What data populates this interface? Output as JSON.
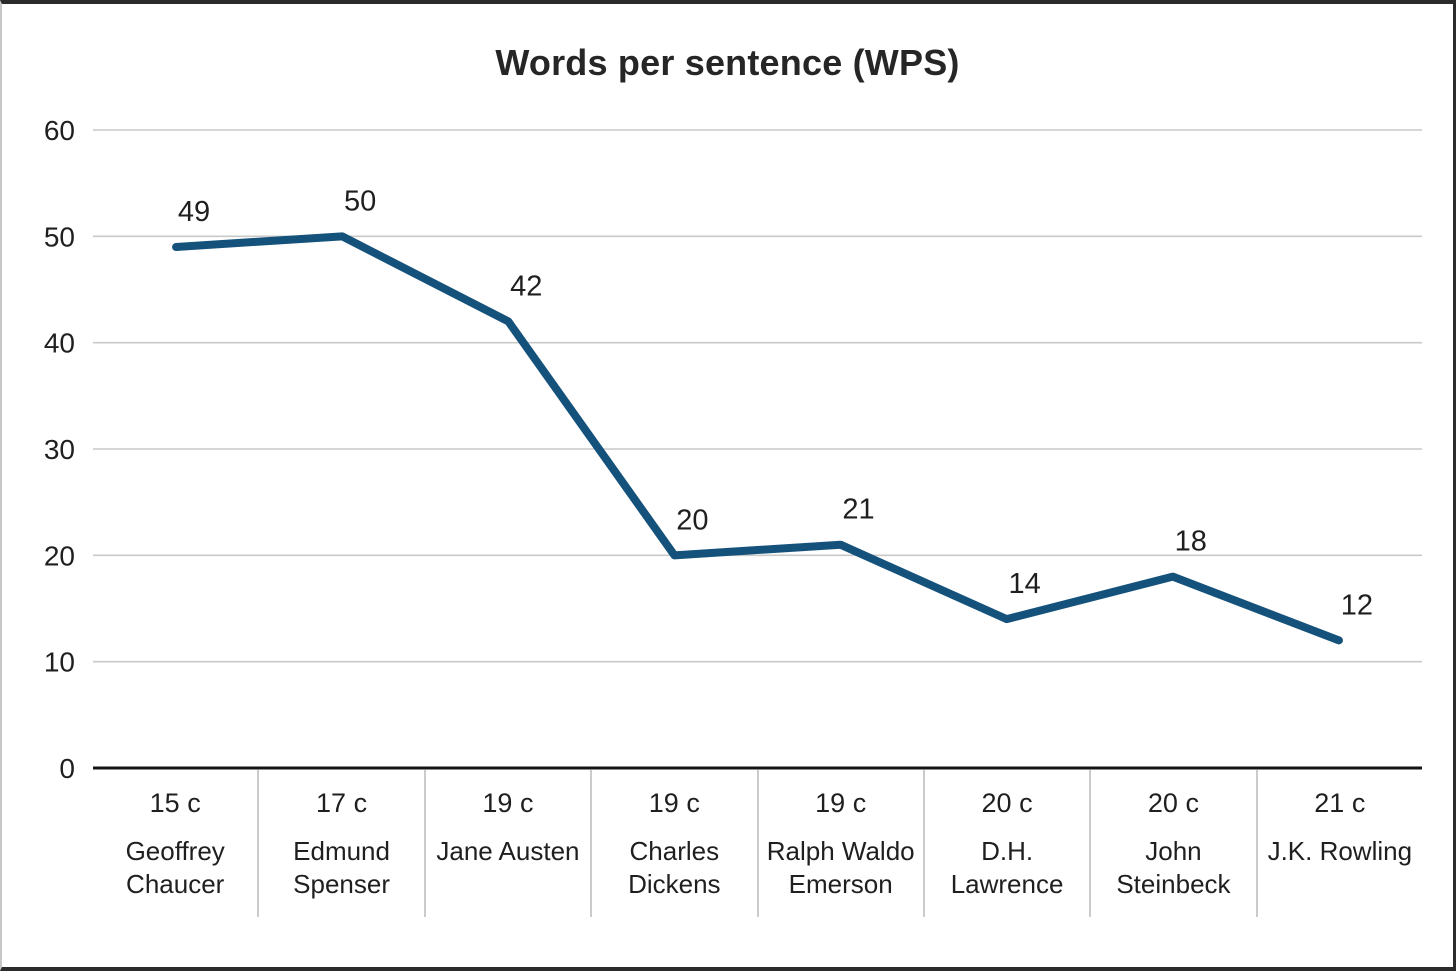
{
  "chart_data": {
    "type": "line",
    "title": "Words per sentence (WPS)",
    "categories": [
      {
        "century": "15 c",
        "author": "Geoffrey Chaucer"
      },
      {
        "century": "17 c",
        "author": "Edmund Spenser"
      },
      {
        "century": "19 c",
        "author": "Jane Austen"
      },
      {
        "century": "19 c",
        "author": "Charles Dickens"
      },
      {
        "century": "19 c",
        "author": "Ralph Waldo Emerson"
      },
      {
        "century": "20 c",
        "author": "D.H. Lawrence"
      },
      {
        "century": "20 c",
        "author": "John Steinbeck"
      },
      {
        "century": "21 c",
        "author": "J.K. Rowling"
      }
    ],
    "values": [
      49,
      50,
      42,
      20,
      21,
      14,
      18,
      12
    ],
    "xlabel": "",
    "ylabel": "",
    "ylim": [
      0,
      60
    ],
    "yticks": [
      0,
      10,
      20,
      30,
      40,
      50,
      60
    ],
    "grid": "horizontal",
    "legend": "none",
    "data_labels_shown": true,
    "colors": {
      "line": "#15527B",
      "gridline": "#c9c9c9",
      "axis_line": "#141414",
      "text": "#1f1f1f",
      "title": "#262626",
      "divider": "#cbcbcb",
      "background": "#ffffff"
    }
  }
}
